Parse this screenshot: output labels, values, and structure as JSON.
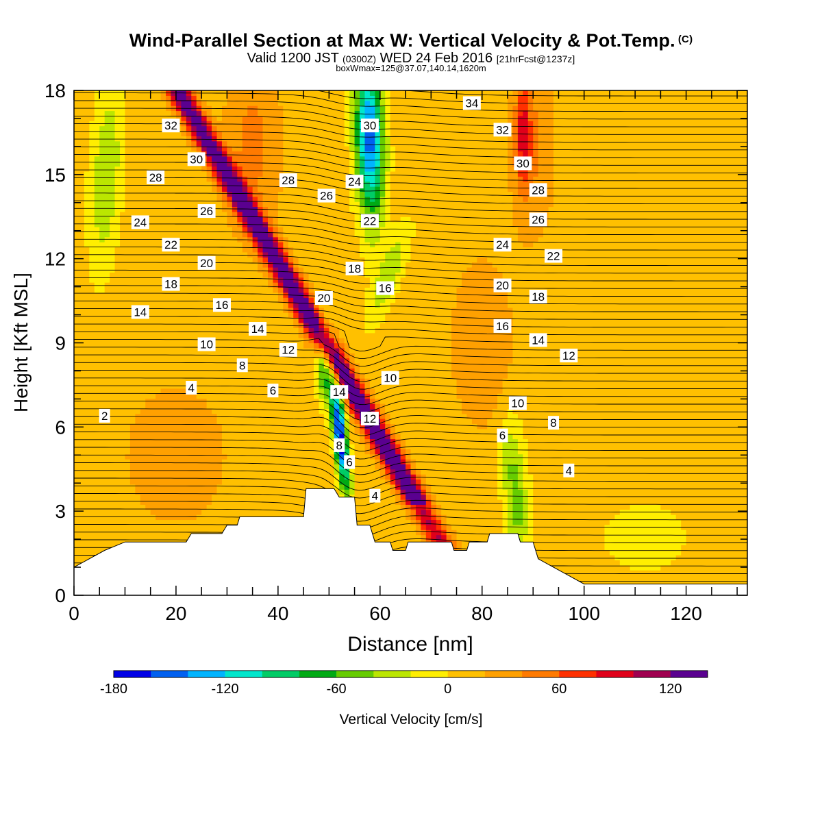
{
  "header": {
    "title": "Wind-Parallel Section at Max W: Vertical Velocity & Pot.Temp.",
    "copyright": "(C)",
    "valid_prefix": "Valid 1200 JST",
    "valid_zulu": "(0300Z)",
    "valid_date": "WED 24 Feb 2016",
    "forecast": "[21hrFcst@1237z]",
    "box_info": "boxWmax=125@37.07,140.14,1620m"
  },
  "chart_data": {
    "type": "contour",
    "xlabel": "Distance [nm]",
    "ylabel": "Height [Kft MSL]",
    "xlim": [
      0,
      132
    ],
    "ylim": [
      0,
      18
    ],
    "x_ticks": [
      0,
      20,
      40,
      60,
      80,
      100,
      120
    ],
    "y_ticks": [
      0,
      3,
      6,
      9,
      12,
      15,
      18
    ],
    "colorbar": {
      "label": "Vertical Velocity [cm/s]",
      "levels": [
        -180,
        -160,
        -140,
        -120,
        -100,
        -80,
        -60,
        -40,
        -20,
        0,
        20,
        40,
        60,
        80,
        100,
        120,
        140
      ],
      "tick_labels": [
        "-180",
        "-120",
        "-60",
        "0",
        "60",
        "120"
      ],
      "colors": [
        "#0000e6",
        "#0060f0",
        "#00b4ff",
        "#00e6cc",
        "#00cc66",
        "#00aa14",
        "#66cc00",
        "#bbe600",
        "#ffee00",
        "#ffc000",
        "#ffa000",
        "#ff7a00",
        "#ff3000",
        "#e0001a",
        "#a00050",
        "#5a0090"
      ]
    },
    "terrain": [
      [
        0,
        1.0
      ],
      [
        3,
        1.3
      ],
      [
        6,
        1.6
      ],
      [
        10,
        1.9
      ],
      [
        22,
        1.9
      ],
      [
        23,
        2.2
      ],
      [
        29,
        2.2
      ],
      [
        30,
        2.5
      ],
      [
        32,
        2.5
      ],
      [
        32.5,
        2.8
      ],
      [
        45,
        2.8
      ],
      [
        45.5,
        3.8
      ],
      [
        51,
        3.8
      ],
      [
        52,
        3.5
      ],
      [
        55,
        3.5
      ],
      [
        55.5,
        2.5
      ],
      [
        58,
        2.5
      ],
      [
        59,
        1.9
      ],
      [
        62,
        1.9
      ],
      [
        62.5,
        1.6
      ],
      [
        65,
        1.6
      ],
      [
        65.5,
        1.9
      ],
      [
        74,
        1.9
      ],
      [
        74.5,
        1.6
      ],
      [
        77,
        1.6
      ],
      [
        77.5,
        1.9
      ],
      [
        81,
        1.9
      ],
      [
        81.5,
        2.2
      ],
      [
        87,
        2.2
      ],
      [
        87.5,
        1.9
      ],
      [
        90,
        1.9
      ],
      [
        91,
        1.3
      ],
      [
        94,
        1.0
      ],
      [
        97,
        0.7
      ],
      [
        100,
        0.4
      ],
      [
        132,
        0.4
      ]
    ],
    "isentrope_labels": [
      {
        "label": "34",
        "x": 78,
        "y": 17.55
      },
      {
        "label": "32",
        "x": 19,
        "y": 16.75
      },
      {
        "label": "32",
        "x": 84,
        "y": 16.6
      },
      {
        "label": "30",
        "x": 24,
        "y": 15.55
      },
      {
        "label": "30",
        "x": 58,
        "y": 16.75
      },
      {
        "label": "30",
        "x": 88,
        "y": 15.4
      },
      {
        "label": "28",
        "x": 16,
        "y": 14.9
      },
      {
        "label": "28",
        "x": 42,
        "y": 14.8
      },
      {
        "label": "28",
        "x": 91,
        "y": 14.45
      },
      {
        "label": "26",
        "x": 26,
        "y": 13.7
      },
      {
        "label": "26",
        "x": 49.5,
        "y": 14.25
      },
      {
        "label": "26",
        "x": 91,
        "y": 13.4
      },
      {
        "label": "24",
        "x": 13,
        "y": 13.3
      },
      {
        "label": "24",
        "x": 55,
        "y": 14.75
      },
      {
        "label": "24",
        "x": 84,
        "y": 12.5
      },
      {
        "label": "22",
        "x": 19,
        "y": 12.5
      },
      {
        "label": "22",
        "x": 58,
        "y": 13.35
      },
      {
        "label": "22",
        "x": 94,
        "y": 12.1
      },
      {
        "label": "20",
        "x": 26,
        "y": 11.85
      },
      {
        "label": "20",
        "x": 49,
        "y": 10.6
      },
      {
        "label": "20",
        "x": 84,
        "y": 11.05
      },
      {
        "label": "18",
        "x": 19,
        "y": 11.1
      },
      {
        "label": "18",
        "x": 55,
        "y": 11.65
      },
      {
        "label": "18",
        "x": 91,
        "y": 10.65
      },
      {
        "label": "16",
        "x": 29,
        "y": 10.35
      },
      {
        "label": "16",
        "x": 61,
        "y": 10.95
      },
      {
        "label": "16",
        "x": 84,
        "y": 9.6
      },
      {
        "label": "14",
        "x": 13,
        "y": 10.1
      },
      {
        "label": "14",
        "x": 36,
        "y": 9.5
      },
      {
        "label": "14",
        "x": 52,
        "y": 7.25
      },
      {
        "label": "14",
        "x": 91,
        "y": 9.1
      },
      {
        "label": "12",
        "x": 42,
        "y": 8.75
      },
      {
        "label": "12",
        "x": 58,
        "y": 6.3
      },
      {
        "label": "12",
        "x": 97,
        "y": 8.55
      },
      {
        "label": "10",
        "x": 26,
        "y": 8.95
      },
      {
        "label": "10",
        "x": 62,
        "y": 7.75
      },
      {
        "label": "10",
        "x": 87,
        "y": 6.85
      },
      {
        "label": "8",
        "x": 33,
        "y": 8.2
      },
      {
        "label": "8",
        "x": 52,
        "y": 5.35
      },
      {
        "label": "8",
        "x": 94,
        "y": 6.15
      },
      {
        "label": "6",
        "x": 39,
        "y": 7.3
      },
      {
        "label": "6",
        "x": 54,
        "y": 4.75
      },
      {
        "label": "6",
        "x": 84,
        "y": 5.7
      },
      {
        "label": "4",
        "x": 23,
        "y": 7.4
      },
      {
        "label": "4",
        "x": 59,
        "y": 3.55
      },
      {
        "label": "4",
        "x": 97,
        "y": 4.45
      },
      {
        "label": "2",
        "x": 6,
        "y": 6.4
      }
    ]
  }
}
